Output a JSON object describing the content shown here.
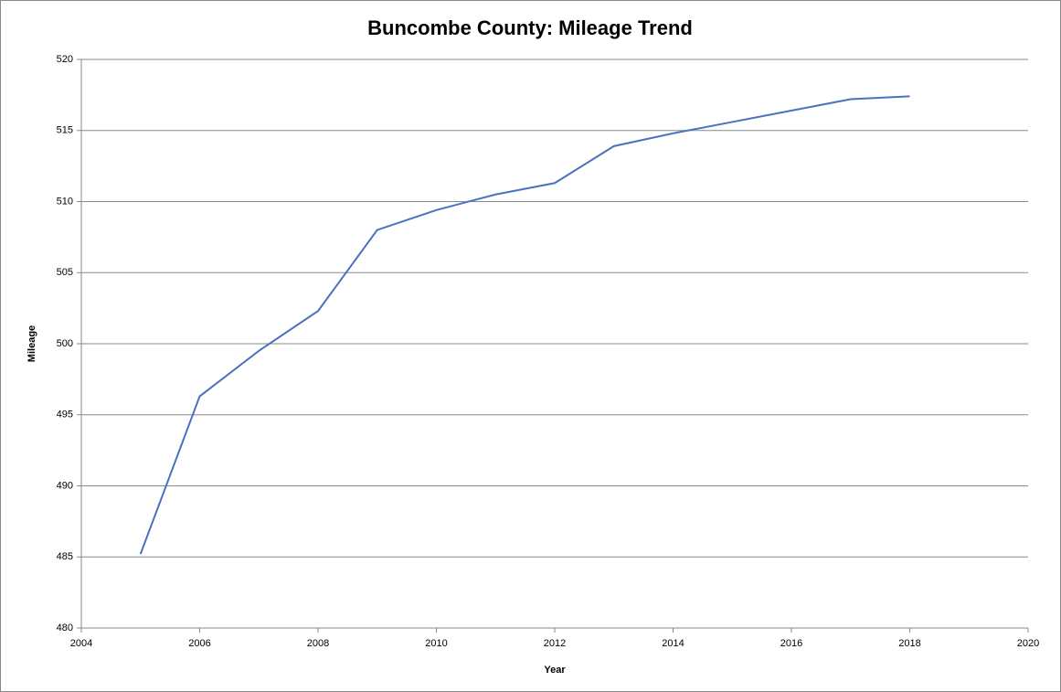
{
  "chart_data": {
    "type": "line",
    "title": "Buncombe County: Mileage Trend",
    "x_label": "Year",
    "y_label": "Mileage",
    "x": [
      2005,
      2006,
      2007,
      2008,
      2009,
      2010,
      2011,
      2012,
      2013,
      2014,
      2015,
      2016,
      2017,
      2018
    ],
    "series": [
      {
        "name": "Mileage",
        "color": "#4a72be",
        "values": [
          485.2,
          496.3,
          499.5,
          502.3,
          508.0,
          509.4,
          510.5,
          511.3,
          513.9,
          514.8,
          515.6,
          516.4,
          517.2,
          517.4
        ]
      }
    ],
    "xlim": [
      2004,
      2020
    ],
    "xticks": [
      2004,
      2006,
      2008,
      2010,
      2012,
      2014,
      2016,
      2018,
      2020
    ],
    "ylim": [
      480,
      520
    ],
    "yticks": [
      480,
      485,
      490,
      495,
      500,
      505,
      510,
      515,
      520
    ],
    "grid": true
  }
}
